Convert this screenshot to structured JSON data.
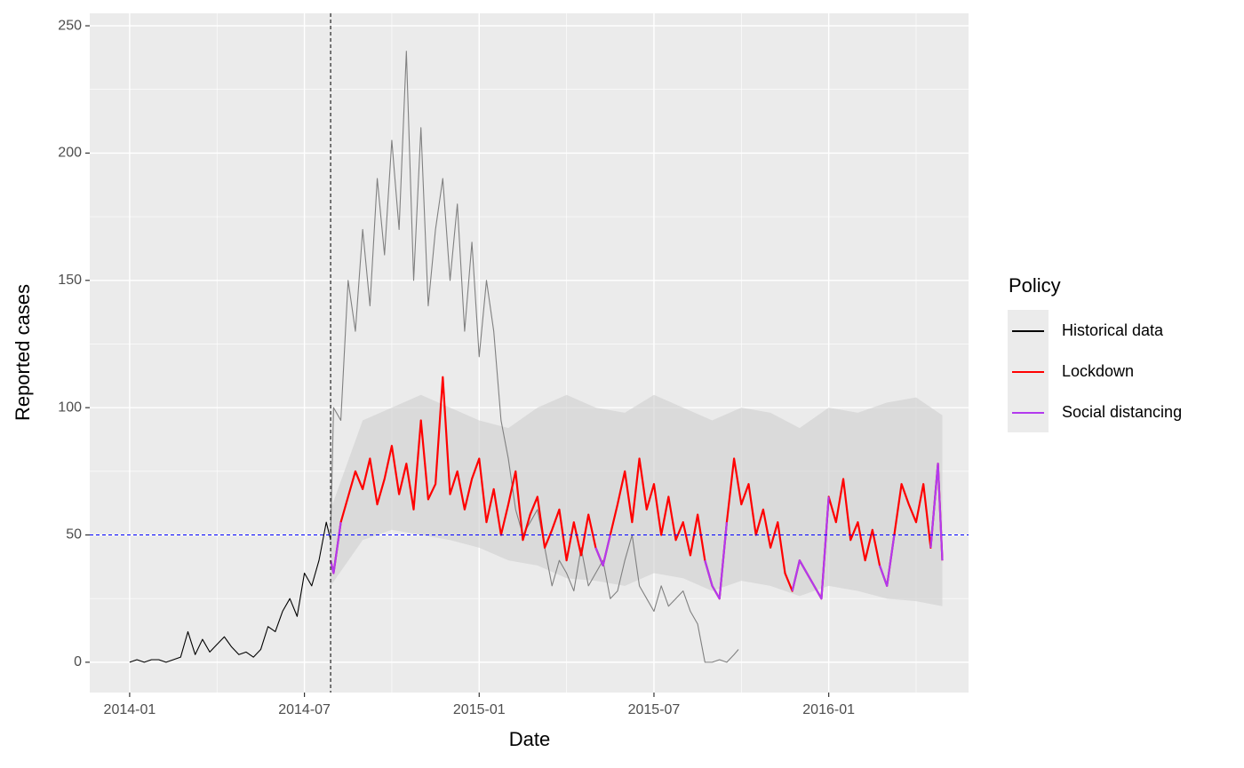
{
  "chart_data": {
    "type": "line",
    "x_label": "Date",
    "y_label": "Reported cases",
    "legend_title": "Policy",
    "legend_position": "right",
    "grid": true,
    "xlim": [
      -1.37,
      28.8
    ],
    "xticks": [
      {
        "value": 0,
        "label": "2014-01"
      },
      {
        "value": 6,
        "label": "2014-07"
      },
      {
        "value": 12,
        "label": "2015-01"
      },
      {
        "value": 18,
        "label": "2015-07"
      },
      {
        "value": 24,
        "label": "2016-01"
      }
    ],
    "ylim": [
      -11.9,
      254.9
    ],
    "yticks": [
      0,
      50,
      100,
      150,
      200,
      250
    ],
    "vline_x": 6.9,
    "hline_y": 50,
    "hline_color": "#0000ff",
    "band": {
      "color": "#cfcfcf",
      "x": [
        6.9,
        8,
        9,
        10,
        11,
        12,
        13,
        14,
        15,
        16,
        17,
        18,
        19,
        20,
        21,
        22,
        23,
        24,
        25,
        26,
        27,
        27.9
      ],
      "upper": [
        60,
        95,
        100,
        105,
        100,
        95,
        92,
        100,
        105,
        100,
        98,
        105,
        100,
        95,
        100,
        98,
        92,
        100,
        98,
        102,
        104,
        97
      ],
      "lower": [
        30,
        48,
        52,
        50,
        48,
        45,
        40,
        38,
        33,
        32,
        30,
        35,
        33,
        28,
        32,
        30,
        26,
        30,
        28,
        25,
        24,
        22
      ]
    },
    "series": [
      {
        "name": "Historical data",
        "color": "#000000",
        "x": [
          0,
          0.25,
          0.5,
          0.75,
          1,
          1.25,
          1.5,
          1.75,
          2,
          2.25,
          2.5,
          2.75,
          3,
          3.25,
          3.5,
          3.75,
          4,
          4.25,
          4.5,
          4.75,
          5,
          5.25,
          5.5,
          5.75,
          6,
          6.25,
          6.5,
          6.75,
          6.9
        ],
        "values": [
          0,
          1,
          0,
          1,
          1,
          0,
          1,
          2,
          12,
          3,
          9,
          4,
          7,
          10,
          6,
          3,
          4,
          2,
          5,
          14,
          12,
          20,
          25,
          18,
          35,
          30,
          40,
          55,
          48
        ]
      },
      {
        "color": "#808080",
        "x": [
          6.9,
          7,
          7.25,
          7.5,
          7.75,
          8,
          8.25,
          8.5,
          8.75,
          9,
          9.25,
          9.5,
          9.75,
          10,
          10.25,
          10.5,
          10.75,
          11,
          11.25,
          11.5,
          11.75,
          12,
          12.25,
          12.5,
          12.75,
          13,
          13.25,
          13.5,
          13.75,
          14,
          14.25,
          14.5,
          14.75,
          15,
          15.25,
          15.5,
          15.75,
          16,
          16.25,
          16.5,
          16.75,
          17,
          17.25,
          17.5,
          17.75,
          18,
          18.25,
          18.5,
          18.75,
          19,
          19.25,
          19.5,
          19.75,
          20,
          20.25,
          20.5,
          20.75,
          20.9
        ],
        "values": [
          50,
          100,
          95,
          150,
          130,
          170,
          140,
          190,
          160,
          205,
          170,
          240,
          150,
          210,
          140,
          170,
          190,
          150,
          180,
          130,
          165,
          120,
          150,
          130,
          95,
          80,
          60,
          50,
          55,
          60,
          45,
          30,
          40,
          35,
          28,
          45,
          30,
          35,
          40,
          25,
          28,
          40,
          50,
          30,
          25,
          20,
          30,
          22,
          25,
          28,
          20,
          15,
          0,
          0,
          1,
          0,
          3,
          5
        ]
      },
      {
        "name": "Lockdown",
        "color": "#ff0000",
        "x": [
          6.9,
          7,
          7.25,
          7.5,
          7.75,
          8,
          8.25,
          8.5,
          8.75,
          9,
          9.25,
          9.5,
          9.75,
          10,
          10.25,
          10.5,
          10.75,
          11,
          11.25,
          11.5,
          11.75,
          12,
          12.25,
          12.5,
          12.75,
          13,
          13.25,
          13.5,
          13.75,
          14,
          14.25,
          14.5,
          14.75,
          15,
          15.25,
          15.5,
          15.75,
          16,
          16.25,
          16.5,
          16.75,
          17,
          17.25,
          17.5,
          17.75,
          18,
          18.25,
          18.5,
          18.75,
          19,
          19.25,
          19.5,
          19.75,
          20,
          20.25,
          20.5,
          20.75,
          21,
          21.25,
          21.5,
          21.75,
          22,
          22.25,
          22.5,
          22.75,
          23,
          23.25,
          23.5,
          23.75,
          24,
          24.25,
          24.5,
          24.75,
          25,
          25.25,
          25.5,
          25.75,
          26,
          26.25,
          26.5,
          26.75,
          27,
          27.25,
          27.5,
          27.75,
          27.9
        ],
        "values": [
          40,
          35,
          55,
          65,
          75,
          68,
          80,
          62,
          72,
          85,
          66,
          78,
          60,
          95,
          64,
          70,
          112,
          66,
          75,
          60,
          72,
          80,
          55,
          68,
          50,
          62,
          75,
          48,
          58,
          65,
          45,
          52,
          60,
          40,
          55,
          42,
          58,
          45,
          38,
          50,
          62,
          75,
          55,
          80,
          60,
          70,
          50,
          65,
          48,
          55,
          42,
          58,
          40,
          30,
          25,
          55,
          80,
          62,
          70,
          50,
          60,
          45,
          55,
          35,
          28,
          40,
          35,
          30,
          25,
          65,
          55,
          72,
          48,
          55,
          40,
          52,
          38,
          30,
          50,
          70,
          62,
          55,
          70,
          45,
          78,
          40
        ]
      },
      {
        "name": "Social distancing",
        "color": "#b23aee",
        "x": [
          6.9,
          7,
          7.25,
          7.5,
          7.75,
          8,
          8.25,
          8.5,
          8.75,
          9,
          9.25,
          9.5,
          9.75,
          10,
          10.25,
          10.5,
          10.75,
          11,
          11.25,
          11.5,
          11.75,
          12,
          12.25,
          12.5,
          12.75,
          13,
          13.25,
          13.5,
          13.75,
          14,
          14.25,
          14.5,
          14.75,
          15,
          15.25,
          15.5,
          15.75,
          16,
          16.25,
          16.5,
          16.75,
          17,
          17.25,
          17.5,
          17.75,
          18,
          18.25,
          18.5,
          18.75,
          19,
          19.25,
          19.5,
          19.75,
          20,
          20.25,
          20.5,
          20.75,
          21,
          21.25,
          21.5,
          21.75,
          22,
          22.25,
          22.5,
          22.75,
          23,
          23.25,
          23.5,
          23.75,
          24,
          24.25,
          24.5,
          24.75,
          25,
          25.25,
          25.5,
          25.75,
          26,
          26.25,
          26.5,
          26.75,
          27,
          27.25,
          27.5,
          27.75,
          27.9
        ],
        "values": [
          40,
          35,
          55,
          null,
          null,
          null,
          null,
          null,
          null,
          null,
          null,
          null,
          null,
          null,
          null,
          null,
          null,
          null,
          null,
          null,
          null,
          null,
          null,
          null,
          null,
          null,
          null,
          null,
          null,
          null,
          null,
          null,
          null,
          null,
          null,
          null,
          null,
          45,
          38,
          50,
          null,
          null,
          null,
          null,
          null,
          null,
          null,
          null,
          null,
          null,
          null,
          null,
          40,
          30,
          25,
          55,
          null,
          null,
          null,
          null,
          null,
          null,
          null,
          null,
          28,
          40,
          35,
          30,
          25,
          65,
          null,
          null,
          null,
          null,
          null,
          null,
          38,
          30,
          50,
          null,
          null,
          null,
          null,
          45,
          78,
          40
        ]
      }
    ]
  }
}
